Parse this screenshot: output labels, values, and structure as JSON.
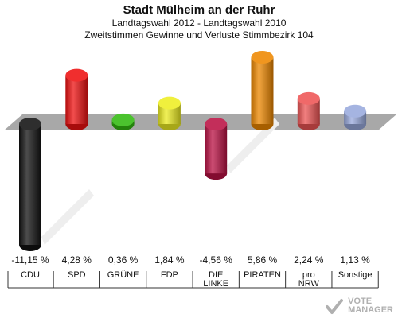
{
  "chart_data": {
    "type": "bar",
    "title": "Stadt Mülheim an der Ruhr",
    "subtitle": "Landtagswahl 2012 - Landtagswahl 2010",
    "subtitle2": "Zweitstimmen Gewinne und Verluste Stimmbezirk 104",
    "categories": [
      "CDU",
      "SPD",
      "GRÜNE",
      "FDP",
      "DIE LINKE",
      "PIRATEN",
      "pro NRW",
      "Sonstige"
    ],
    "category_lines": [
      [
        "CDU"
      ],
      [
        "SPD"
      ],
      [
        "GRÜNE"
      ],
      [
        "FDP"
      ],
      [
        "DIE",
        "LINKE"
      ],
      [
        "PIRATEN"
      ],
      [
        "pro",
        "NRW"
      ],
      [
        "Sonstige"
      ]
    ],
    "values": [
      -11.15,
      4.28,
      0.36,
      1.84,
      -4.56,
      5.86,
      2.24,
      1.13
    ],
    "value_labels": [
      "-11,15 %",
      "4,28 %",
      "0,36 %",
      "1,84 %",
      "-4,56 %",
      "5,86 %",
      "2,24 %",
      "1,13 %"
    ],
    "colors": [
      "#111111",
      "#ee1111",
      "#33bb11",
      "#eeee22",
      "#bb1144",
      "#ee8800",
      "#ee5555",
      "#99aadd"
    ],
    "ylim": [
      -11.15,
      5.86
    ],
    "grid": false,
    "legend": "none"
  },
  "watermark": {
    "line1": "VOTE",
    "line2": "MANAGER"
  }
}
